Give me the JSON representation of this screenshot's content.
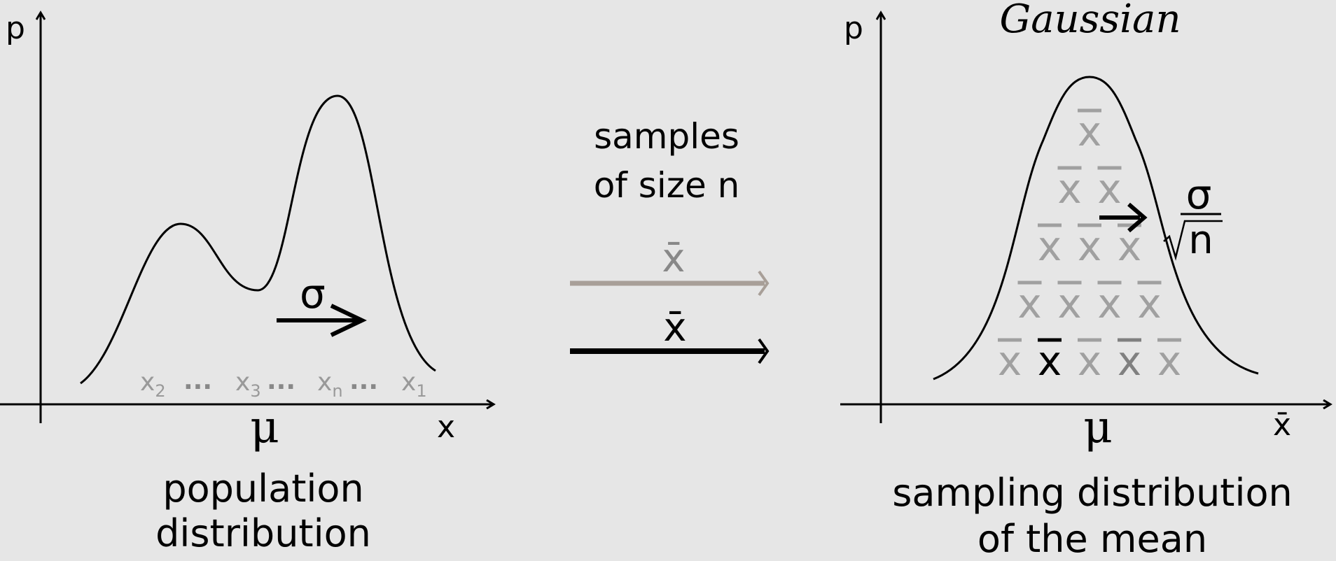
{
  "left_panel": {
    "y_axis_label": "p",
    "x_axis_label": "x",
    "mean_label": "μ",
    "sigma_label": "σ",
    "sample_points": [
      {
        "base": "x",
        "sub": "2"
      },
      {
        "base": "x",
        "sub": "3"
      },
      {
        "base": "x",
        "sub": "n"
      },
      {
        "base": "x",
        "sub": "1"
      }
    ],
    "ellipsis": "...",
    "caption_line1": "population",
    "caption_line2": "distribution"
  },
  "middle": {
    "line1": "samples",
    "line2": "of size n",
    "arrow_gray_label": "x̄",
    "arrow_black_label": "x̄"
  },
  "right_panel": {
    "title": "Gaussian",
    "y_axis_label": "p",
    "x_axis_label": "x̄",
    "mean_label": "μ",
    "sigma_numerator": "σ",
    "sigma_denominator": "n",
    "sample_mean_glyph": "x",
    "pyramid_rows": [
      [
        "gray"
      ],
      [
        "gray",
        "gray"
      ],
      [
        "gray",
        "gray",
        "gray"
      ],
      [
        "gray",
        "gray",
        "gray",
        "gray"
      ],
      [
        "gray",
        "black",
        "gray",
        "darkgray",
        "gray"
      ]
    ],
    "caption_line1": "sampling distribution",
    "caption_line2": "of the mean"
  },
  "colors": {
    "ink": "#000000",
    "gray": "#a0a0a0",
    "dark_gray": "#808080",
    "arrow_gray": "#a89f98",
    "background": "#e6e6e6"
  }
}
